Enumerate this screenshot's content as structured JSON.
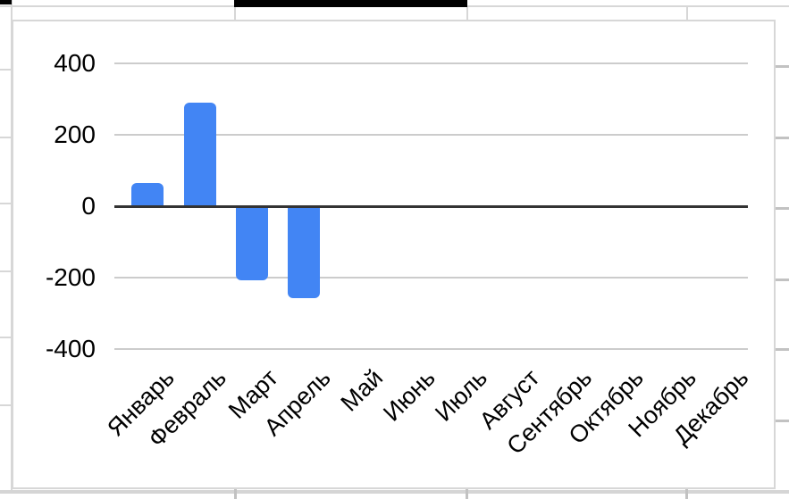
{
  "app": {
    "context": "spreadsheet-with-embedded-chart"
  },
  "colors": {
    "bar": "#4285f4",
    "axis": "#333333",
    "grid": "#cccccc",
    "sheet_line": "#d7d7d7",
    "text": "#000000"
  },
  "chart_data": {
    "type": "bar",
    "title": "",
    "xlabel": "",
    "ylabel": "",
    "categories": [
      "Январь",
      "Февраль",
      "Март",
      "Апрель",
      "Май",
      "Июнь",
      "Июль",
      "Август",
      "Сентябрь",
      "Октябрь",
      "Ноябрь",
      "Декабрь"
    ],
    "values": [
      65,
      290,
      -205,
      -255,
      0,
      0,
      0,
      0,
      0,
      0,
      0,
      0
    ],
    "yticks": [
      400,
      200,
      0,
      -200,
      -400
    ],
    "ylim": [
      -450,
      500
    ],
    "grid": true,
    "legend": false,
    "x_tick_rotation_deg": -45,
    "bar_color": "#4285f4",
    "axis_color": "#333333",
    "gridline_color": "#cccccc"
  }
}
